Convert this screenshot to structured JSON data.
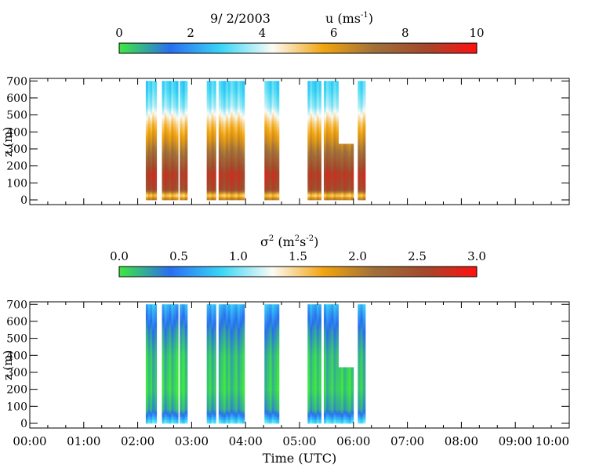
{
  "chart_data": [
    {
      "type": "heatmap",
      "date": "9/ 2/2003",
      "quantity_label": "u (ms",
      "quantity_exp": "-1",
      "quantity_close": ")",
      "colorbar": {
        "ticks": [
          "0",
          "2",
          "4",
          "6",
          "8",
          "10"
        ],
        "range": [
          0,
          10
        ],
        "stops": [
          "#3fe83f",
          "#2a6ef0",
          "#3ad6f5",
          "#fbfbf6",
          "#f1a40f",
          "#a0703a",
          "#a3482c",
          "#ff1010"
        ]
      },
      "ylabel": "z (m)",
      "yticks": [
        "0",
        "100",
        "200",
        "300",
        "400",
        "500",
        "600",
        "700"
      ],
      "ylim": [
        0,
        700
      ],
      "xlim": [
        0,
        10
      ],
      "segments": [
        {
          "x": [
            2.15,
            2.35
          ],
          "top": 700
        },
        {
          "x": [
            2.45,
            2.75
          ],
          "top": 700
        },
        {
          "x": [
            2.78,
            2.92
          ],
          "top": 700
        },
        {
          "x": [
            3.28,
            3.45
          ],
          "top": 700
        },
        {
          "x": [
            3.5,
            3.98
          ],
          "top": 700
        },
        {
          "x": [
            4.35,
            4.62
          ],
          "top": 700
        },
        {
          "x": [
            5.15,
            5.4
          ],
          "top": 700
        },
        {
          "x": [
            5.45,
            5.72
          ],
          "top": 700
        },
        {
          "x": [
            5.72,
            6.0
          ],
          "top": 330
        },
        {
          "x": [
            6.08,
            6.22
          ],
          "top": 700
        }
      ],
      "profile": [
        {
          "z": 0,
          "v": 7.0
        },
        {
          "z": 30,
          "v": 5.0
        },
        {
          "z": 60,
          "v": 8.5
        },
        {
          "z": 150,
          "v": 9.0
        },
        {
          "z": 250,
          "v": 7.6
        },
        {
          "z": 350,
          "v": 6.3
        },
        {
          "z": 450,
          "v": 5.2
        },
        {
          "z": 550,
          "v": 3.6
        },
        {
          "z": 650,
          "v": 3.0
        },
        {
          "z": 700,
          "v": 2.9
        }
      ]
    },
    {
      "type": "heatmap",
      "quantity_label": "σ",
      "quantity_exp": "2",
      "quantity_unit": " (m",
      "quantity_unit_exp1": "2",
      "quantity_unit_mid": "s",
      "quantity_unit_exp2": "-2",
      "quantity_close": ")",
      "colorbar": {
        "ticks": [
          "0.0",
          "0.5",
          "1.0",
          "1.5",
          "2.0",
          "2.5",
          "3.0"
        ],
        "range": [
          0,
          3
        ],
        "stops": [
          "#3fe83f",
          "#2a6ef0",
          "#3ad6f5",
          "#fbfbf6",
          "#f1a40f",
          "#a0703a",
          "#a3482c",
          "#ff1010"
        ]
      },
      "ylabel": "z (m)",
      "yticks": [
        "0",
        "100",
        "200",
        "300",
        "400",
        "500",
        "600",
        "700"
      ],
      "ylim": [
        0,
        700
      ],
      "xlim": [
        0,
        10
      ],
      "xticks": [
        "00:00",
        "01:00",
        "02:00",
        "03:00",
        "04:00",
        "05:00",
        "06:00",
        "07:00",
        "08:00",
        "09:00",
        "10:00"
      ],
      "xlabel": "Time (UTC)",
      "segments": [
        {
          "x": [
            2.15,
            2.35
          ],
          "top": 700
        },
        {
          "x": [
            2.45,
            2.75
          ],
          "top": 700
        },
        {
          "x": [
            2.78,
            2.92
          ],
          "top": 700
        },
        {
          "x": [
            3.28,
            3.45
          ],
          "top": 700
        },
        {
          "x": [
            3.5,
            3.98
          ],
          "top": 700
        },
        {
          "x": [
            4.35,
            4.62
          ],
          "top": 700
        },
        {
          "x": [
            5.15,
            5.4
          ],
          "top": 700
        },
        {
          "x": [
            5.45,
            5.72
          ],
          "top": 700
        },
        {
          "x": [
            5.72,
            6.0
          ],
          "top": 330
        },
        {
          "x": [
            6.08,
            6.22
          ],
          "top": 700
        }
      ],
      "profile": [
        {
          "z": 0,
          "v": 1.0
        },
        {
          "z": 40,
          "v": 0.6
        },
        {
          "z": 80,
          "v": 0.25
        },
        {
          "z": 200,
          "v": 0.1
        },
        {
          "z": 400,
          "v": 0.15
        },
        {
          "z": 550,
          "v": 0.35
        },
        {
          "z": 650,
          "v": 0.6
        },
        {
          "z": 700,
          "v": 0.75
        }
      ]
    }
  ]
}
